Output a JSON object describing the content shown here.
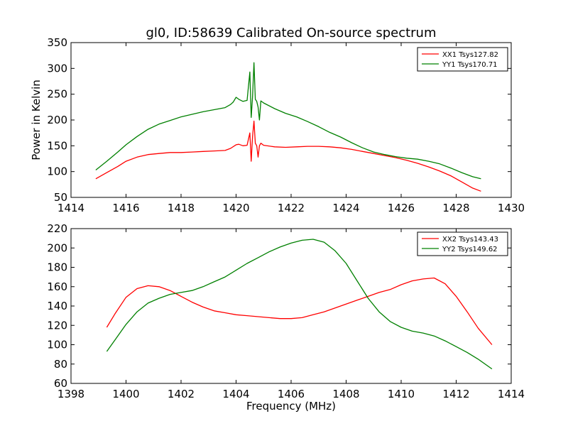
{
  "figure": {
    "title": "gl0, ID:58639 Calibrated On-source spectrum"
  },
  "chart_data": [
    {
      "type": "line",
      "title": "gl0, ID:58639 Calibrated On-source spectrum",
      "xlabel": "",
      "ylabel": "Power in Kelvin",
      "xlim": [
        1414,
        1430
      ],
      "ylim": [
        50,
        350
      ],
      "xticks": [
        1414,
        1416,
        1418,
        1420,
        1422,
        1424,
        1426,
        1428,
        1430
      ],
      "yticks": [
        50,
        100,
        150,
        200,
        250,
        300,
        350
      ],
      "grid": false,
      "legend_position": "top-right",
      "series": [
        {
          "name": "XX1 Tsys127.82",
          "color": "#ff0000",
          "x": [
            1414.9,
            1415.3,
            1415.7,
            1416.0,
            1416.4,
            1416.8,
            1417.2,
            1417.6,
            1418.0,
            1418.4,
            1418.8,
            1419.2,
            1419.6,
            1419.8,
            1420.0,
            1420.1,
            1420.25,
            1420.4,
            1420.5,
            1420.55,
            1420.6,
            1420.65,
            1420.7,
            1420.75,
            1420.8,
            1420.85,
            1420.9,
            1421.0,
            1421.4,
            1421.8,
            1422.2,
            1422.6,
            1423.0,
            1423.4,
            1423.8,
            1424.2,
            1424.6,
            1425.0,
            1425.4,
            1425.8,
            1426.2,
            1426.6,
            1427.0,
            1427.4,
            1427.8,
            1428.2,
            1428.6,
            1428.9
          ],
          "y": [
            86,
            98,
            110,
            120,
            128,
            133,
            135,
            137,
            137,
            138,
            139,
            140,
            141,
            145,
            152,
            153,
            150,
            151,
            175,
            120,
            168,
            198,
            155,
            150,
            128,
            150,
            155,
            151,
            148,
            147,
            148,
            149,
            149,
            148,
            146,
            143,
            139,
            135,
            131,
            127,
            122,
            116,
            109,
            101,
            92,
            80,
            68,
            62
          ]
        },
        {
          "name": "YY1 Tsys170.71",
          "color": "#008000",
          "x": [
            1414.9,
            1415.3,
            1415.7,
            1416.0,
            1416.4,
            1416.8,
            1417.2,
            1417.6,
            1418.0,
            1418.4,
            1418.8,
            1419.2,
            1419.6,
            1419.8,
            1419.9,
            1420.0,
            1420.1,
            1420.25,
            1420.4,
            1420.5,
            1420.55,
            1420.6,
            1420.65,
            1420.7,
            1420.75,
            1420.8,
            1420.85,
            1420.9,
            1421.0,
            1421.4,
            1421.8,
            1422.2,
            1422.6,
            1423.0,
            1423.4,
            1423.8,
            1424.2,
            1424.6,
            1425.0,
            1425.4,
            1425.8,
            1426.2,
            1426.6,
            1427.0,
            1427.4,
            1427.8,
            1428.2,
            1428.6,
            1428.9
          ],
          "y": [
            103,
            120,
            138,
            152,
            168,
            182,
            192,
            199,
            206,
            211,
            216,
            220,
            224,
            230,
            235,
            244,
            240,
            236,
            238,
            293,
            205,
            245,
            311,
            240,
            236,
            225,
            200,
            237,
            233,
            222,
            213,
            206,
            197,
            187,
            176,
            167,
            156,
            146,
            138,
            133,
            129,
            126,
            124,
            120,
            115,
            107,
            98,
            90,
            86
          ]
        }
      ]
    },
    {
      "type": "line",
      "title": "",
      "xlabel": "Frequency (MHz)",
      "ylabel": "",
      "xlim": [
        1398,
        1414
      ],
      "ylim": [
        60,
        220
      ],
      "xticks": [
        1398,
        1400,
        1402,
        1404,
        1406,
        1408,
        1410,
        1412,
        1414
      ],
      "yticks": [
        60,
        80,
        100,
        120,
        140,
        160,
        180,
        200,
        220
      ],
      "grid": false,
      "legend_position": "top-right",
      "series": [
        {
          "name": "XX2 Tsys143.43",
          "color": "#ff0000",
          "x": [
            1399.3,
            1399.6,
            1400.0,
            1400.4,
            1400.8,
            1401.2,
            1401.6,
            1402.0,
            1402.4,
            1402.8,
            1403.2,
            1403.6,
            1404.0,
            1404.4,
            1404.8,
            1405.2,
            1405.6,
            1406.0,
            1406.4,
            1406.8,
            1407.2,
            1407.6,
            1408.0,
            1408.4,
            1408.8,
            1409.2,
            1409.6,
            1410.0,
            1410.4,
            1410.8,
            1411.2,
            1411.6,
            1412.0,
            1412.4,
            1412.8,
            1413.3
          ],
          "y": [
            118,
            132,
            149,
            158,
            161,
            160,
            156,
            150,
            144,
            139,
            135,
            133,
            131,
            130,
            129,
            128,
            127,
            127,
            128,
            131,
            134,
            138,
            142,
            146,
            150,
            154,
            157,
            162,
            166,
            168,
            169,
            163,
            150,
            134,
            117,
            100
          ]
        },
        {
          "name": "YY2 Tsys149.62",
          "color": "#008000",
          "x": [
            1399.3,
            1399.6,
            1400.0,
            1400.4,
            1400.8,
            1401.2,
            1401.6,
            1402.0,
            1402.4,
            1402.8,
            1403.2,
            1403.6,
            1404.0,
            1404.4,
            1404.8,
            1405.2,
            1405.6,
            1406.0,
            1406.4,
            1406.8,
            1407.2,
            1407.6,
            1408.0,
            1408.4,
            1408.8,
            1409.2,
            1409.6,
            1410.0,
            1410.4,
            1410.8,
            1411.2,
            1411.6,
            1412.0,
            1412.4,
            1412.8,
            1413.3
          ],
          "y": [
            93,
            105,
            121,
            134,
            143,
            148,
            152,
            154,
            156,
            160,
            165,
            170,
            177,
            184,
            190,
            196,
            201,
            205,
            208,
            209,
            206,
            197,
            184,
            166,
            148,
            134,
            124,
            118,
            114,
            112,
            109,
            104,
            98,
            92,
            85,
            75
          ]
        }
      ]
    }
  ]
}
